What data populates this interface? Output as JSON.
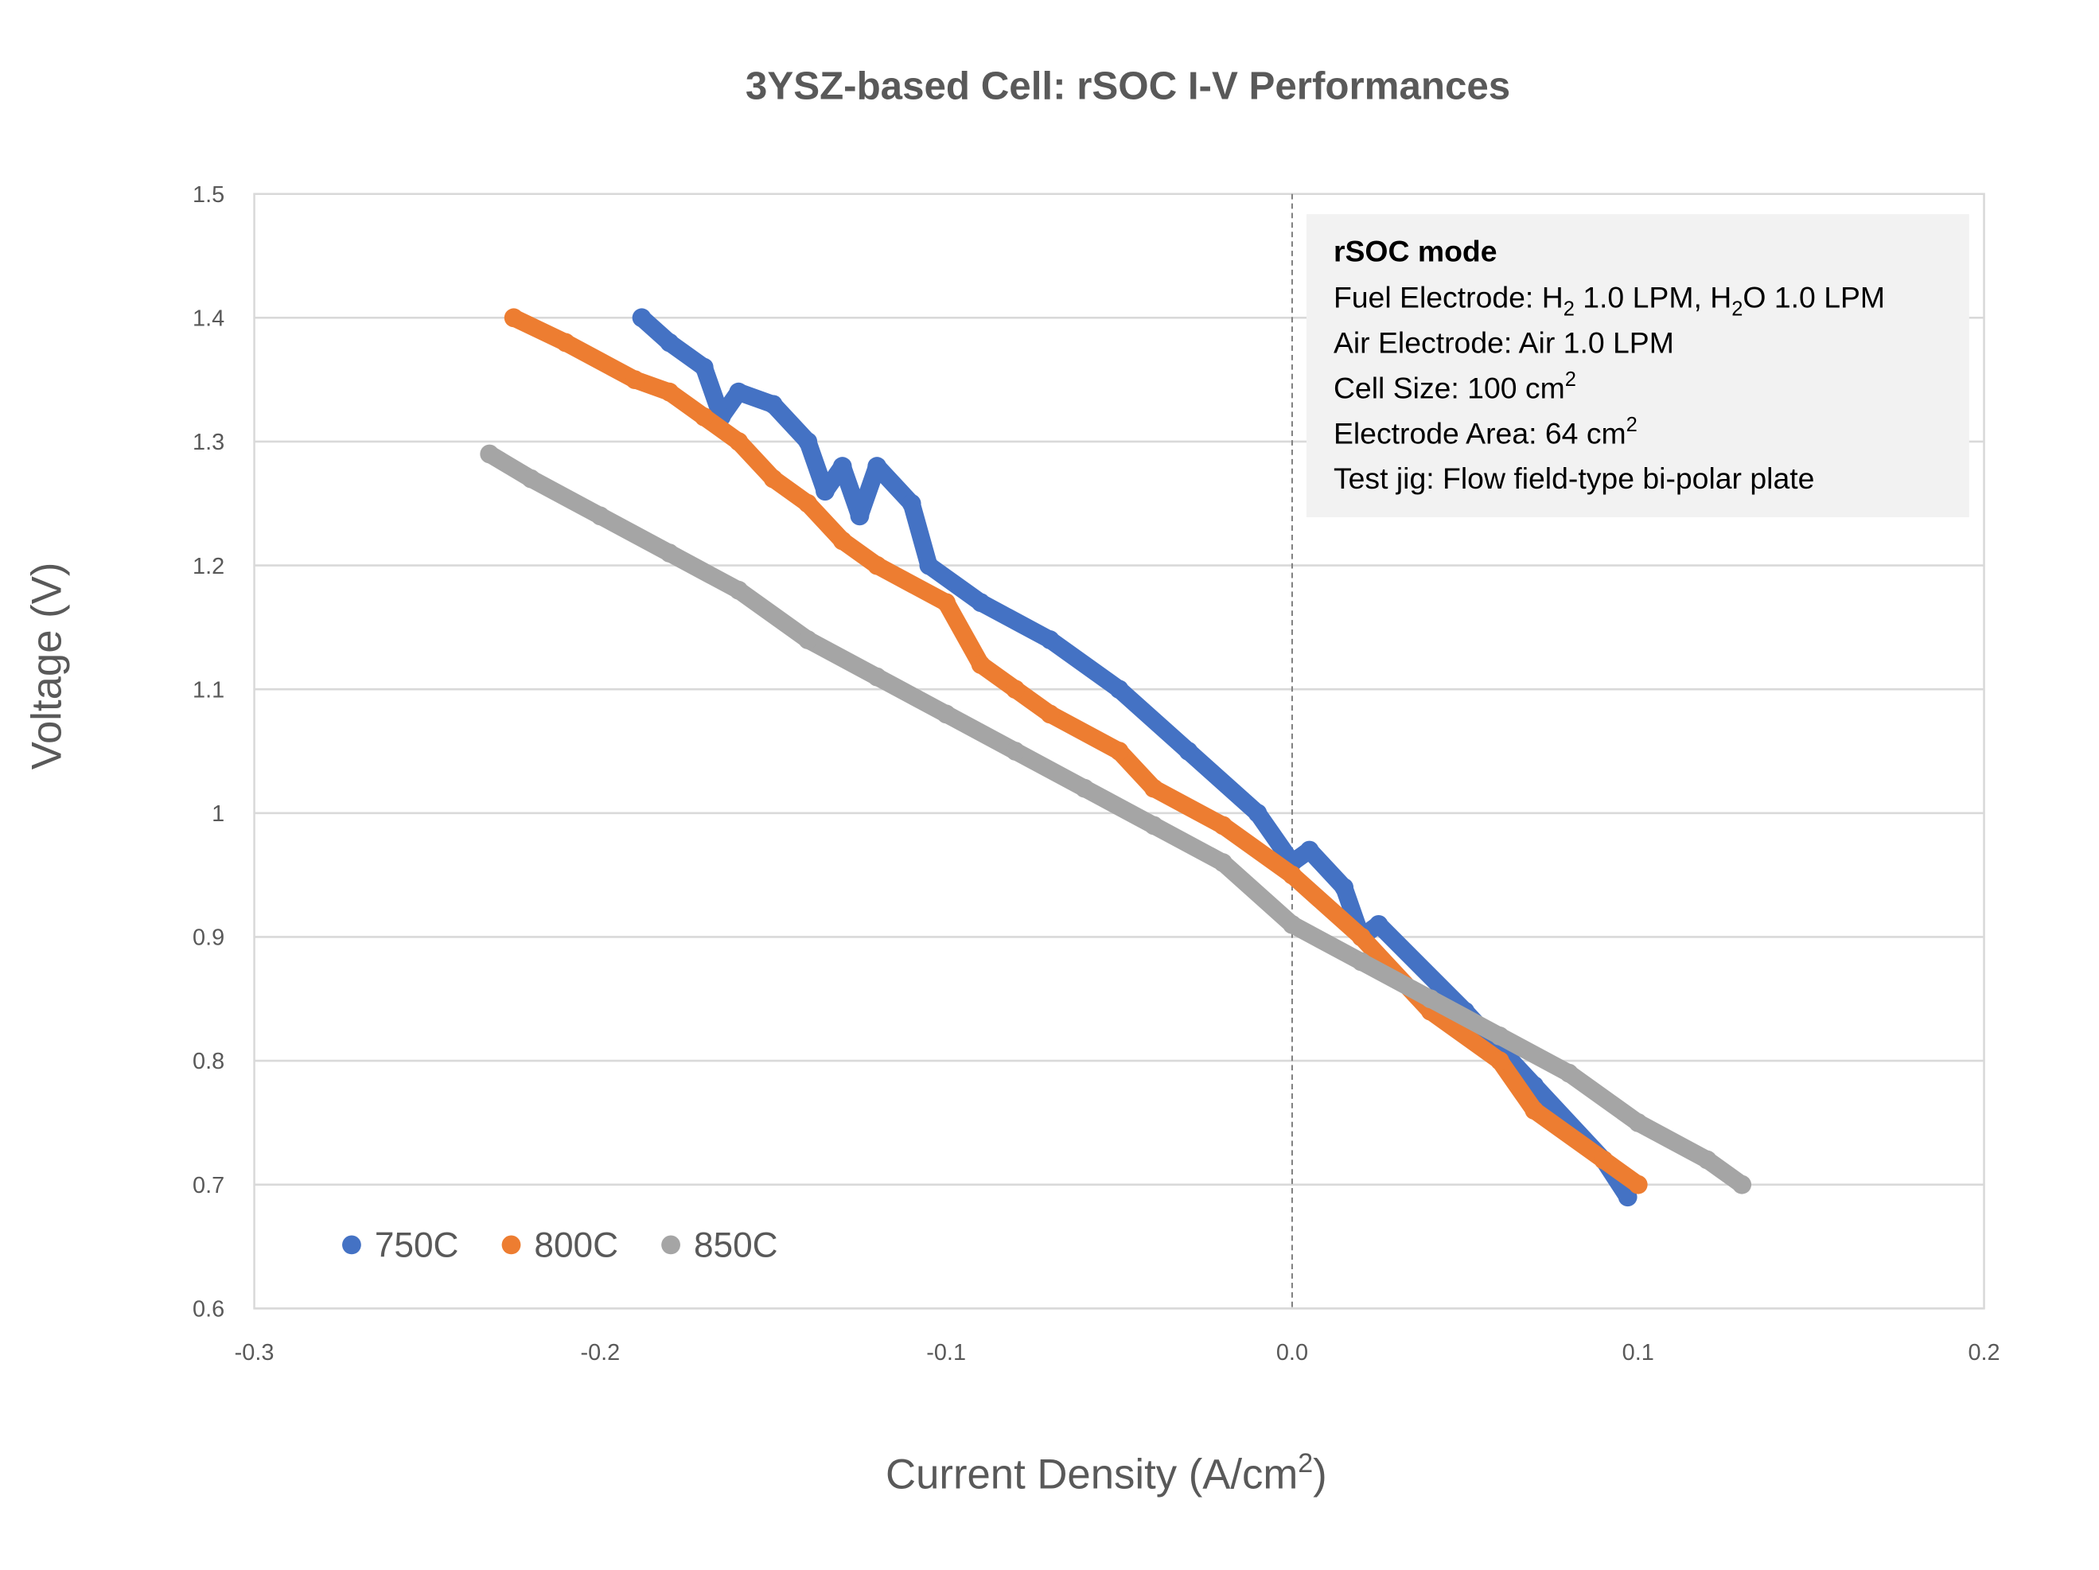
{
  "chart_data": {
    "type": "scatter",
    "title": "3YSZ-based Cell: rSOC I-V Performances",
    "xlabel": "Current Density (A/cm",
    "xlabel_sup": "2",
    "xlabel_end": ")",
    "ylabel": "Voltage (V)",
    "xlim": [
      -0.3,
      0.2
    ],
    "ylim": [
      0.6,
      1.5
    ],
    "xticks": [
      "-0.3",
      "-0.2",
      "-0.1",
      "0.0",
      "0.1",
      "0.2"
    ],
    "yticks": [
      "0.6",
      "0.7",
      "0.8",
      "0.9",
      "1",
      "1.1",
      "1.2",
      "1.3",
      "1.4",
      "1.5"
    ],
    "grid": "horizontal",
    "reference_line": {
      "x": 0.0,
      "style": "dashed"
    },
    "legend_position": "bottom-left",
    "annotation": {
      "title": "rSOC mode",
      "lines": [
        {
          "parts": [
            "Fuel Electrode: H",
            "2",
            " 1.0 LPM, H",
            "2",
            "O 1.0 LPM"
          ]
        },
        {
          "parts": [
            "Air Electrode: Air 1.0 LPM"
          ]
        },
        {
          "parts": [
            "Cell Size: 100 cm",
            "2"
          ]
        },
        {
          "parts": [
            "Electrode Area: 64 cm",
            "2"
          ]
        },
        {
          "parts": [
            "Test jig: Flow field-type bi-polar plate"
          ]
        }
      ]
    },
    "series": [
      {
        "name": "750C",
        "color": "#4472C4",
        "points": [
          [
            -0.188,
            1.4
          ],
          [
            -0.18,
            1.38
          ],
          [
            -0.17,
            1.36
          ],
          [
            -0.165,
            1.32
          ],
          [
            -0.16,
            1.34
          ],
          [
            -0.15,
            1.33
          ],
          [
            -0.14,
            1.3
          ],
          [
            -0.135,
            1.26
          ],
          [
            -0.13,
            1.28
          ],
          [
            -0.125,
            1.24
          ],
          [
            -0.12,
            1.28
          ],
          [
            -0.11,
            1.25
          ],
          [
            -0.105,
            1.2
          ],
          [
            -0.09,
            1.17
          ],
          [
            -0.07,
            1.14
          ],
          [
            -0.05,
            1.1
          ],
          [
            -0.03,
            1.05
          ],
          [
            -0.01,
            1.0
          ],
          [
            0.0,
            0.96
          ],
          [
            0.005,
            0.97
          ],
          [
            0.015,
            0.94
          ],
          [
            0.02,
            0.9
          ],
          [
            0.025,
            0.91
          ],
          [
            0.05,
            0.84
          ],
          [
            0.07,
            0.78
          ],
          [
            0.09,
            0.72
          ],
          [
            0.097,
            0.69
          ]
        ]
      },
      {
        "name": "800C",
        "color": "#ED7D31",
        "points": [
          [
            -0.225,
            1.4
          ],
          [
            -0.21,
            1.38
          ],
          [
            -0.19,
            1.35
          ],
          [
            -0.18,
            1.34
          ],
          [
            -0.17,
            1.32
          ],
          [
            -0.16,
            1.3
          ],
          [
            -0.15,
            1.27
          ],
          [
            -0.14,
            1.25
          ],
          [
            -0.13,
            1.22
          ],
          [
            -0.12,
            1.2
          ],
          [
            -0.1,
            1.17
          ],
          [
            -0.09,
            1.12
          ],
          [
            -0.08,
            1.1
          ],
          [
            -0.07,
            1.08
          ],
          [
            -0.05,
            1.05
          ],
          [
            -0.04,
            1.02
          ],
          [
            -0.02,
            0.99
          ],
          [
            0.0,
            0.95
          ],
          [
            0.02,
            0.9
          ],
          [
            0.04,
            0.84
          ],
          [
            0.06,
            0.8
          ],
          [
            0.07,
            0.76
          ],
          [
            0.09,
            0.72
          ],
          [
            0.1,
            0.7
          ]
        ]
      },
      {
        "name": "850C",
        "color": "#A5A5A5",
        "points": [
          [
            -0.232,
            1.29
          ],
          [
            -0.22,
            1.27
          ],
          [
            -0.2,
            1.24
          ],
          [
            -0.18,
            1.21
          ],
          [
            -0.16,
            1.18
          ],
          [
            -0.14,
            1.14
          ],
          [
            -0.12,
            1.11
          ],
          [
            -0.1,
            1.08
          ],
          [
            -0.08,
            1.05
          ],
          [
            -0.06,
            1.02
          ],
          [
            -0.04,
            0.99
          ],
          [
            -0.02,
            0.96
          ],
          [
            0.0,
            0.91
          ],
          [
            0.02,
            0.88
          ],
          [
            0.04,
            0.85
          ],
          [
            0.06,
            0.82
          ],
          [
            0.08,
            0.79
          ],
          [
            0.1,
            0.75
          ],
          [
            0.12,
            0.72
          ],
          [
            0.13,
            0.7
          ]
        ]
      }
    ]
  }
}
